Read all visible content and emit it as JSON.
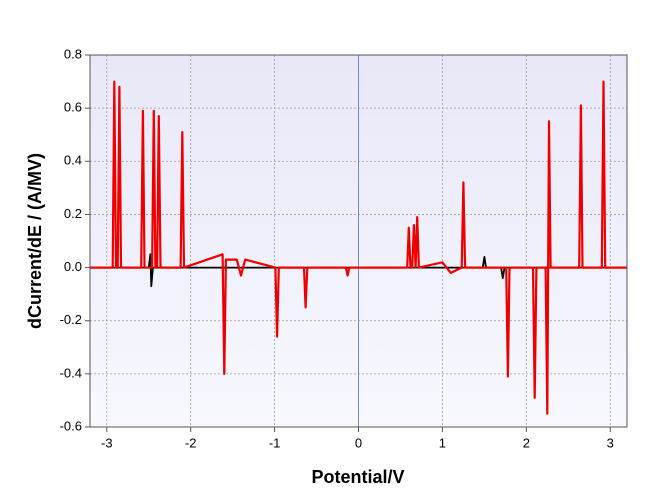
{
  "chart_data": {
    "type": "line",
    "xlabel": "Potential/V",
    "ylabel": "dCurrent/dE / (A/MV)",
    "xlim": [
      -3.2,
      3.2
    ],
    "ylim": [
      -0.6,
      0.8
    ],
    "xticks": [
      -3,
      -2,
      -1,
      0,
      1,
      2,
      3
    ],
    "yticks": [
      -0.6,
      -0.4,
      -0.2,
      {
        "value": 0,
        "label": "0.0"
      },
      0.2,
      0.4,
      0.6,
      0.8
    ],
    "grid": true,
    "series": [
      {
        "color": "#000000",
        "x": [
          -3.2,
          -2.5,
          -2.48,
          -2.47,
          -2.45,
          1.48,
          1.5,
          1.52,
          1.7,
          1.72,
          1.74,
          3.2
        ],
        "values": [
          0,
          0,
          0.05,
          -0.07,
          0,
          0,
          0.04,
          0,
          0,
          -0.04,
          0,
          0
        ]
      },
      {
        "color": "#ee0000",
        "x": [
          -3.2,
          -2.93,
          -2.91,
          -2.89,
          -2.87,
          -2.85,
          -2.83,
          -2.59,
          -2.57,
          -2.55,
          -2.46,
          -2.44,
          -2.42,
          -2.4,
          -2.38,
          -2.36,
          -2.12,
          -2.1,
          -2.08,
          -1.62,
          -1.6,
          -1.58,
          -1.45,
          -1.4,
          -1.35,
          -0.99,
          -0.97,
          -0.95,
          -0.65,
          -0.63,
          -0.61,
          -0.15,
          -0.13,
          -0.11,
          0.58,
          0.6,
          0.62,
          0.64,
          0.66,
          0.68,
          0.7,
          0.72,
          1.0,
          1.1,
          1.23,
          1.25,
          1.27,
          1.76,
          1.78,
          1.8,
          2.08,
          2.1,
          2.12,
          2.23,
          2.25,
          2.27,
          2.29,
          2.63,
          2.65,
          2.67,
          2.9,
          2.92,
          2.94,
          3.2
        ],
        "values": [
          0,
          0,
          0.7,
          0,
          0,
          0.68,
          0,
          0,
          0.59,
          0,
          0,
          0.59,
          0,
          0,
          0.57,
          0,
          0,
          0.51,
          0,
          0.05,
          -0.4,
          0.03,
          0.03,
          -0.03,
          0.03,
          0,
          -0.26,
          0,
          0,
          -0.15,
          0,
          0,
          -0.03,
          0,
          0,
          0.15,
          0,
          0,
          0.16,
          0,
          0.19,
          0,
          0.02,
          -0.02,
          0,
          0.32,
          0,
          0,
          -0.41,
          0,
          0,
          -0.49,
          0,
          0,
          -0.55,
          0.55,
          0,
          0,
          0.61,
          0,
          0,
          0.7,
          0,
          0
        ]
      }
    ]
  }
}
